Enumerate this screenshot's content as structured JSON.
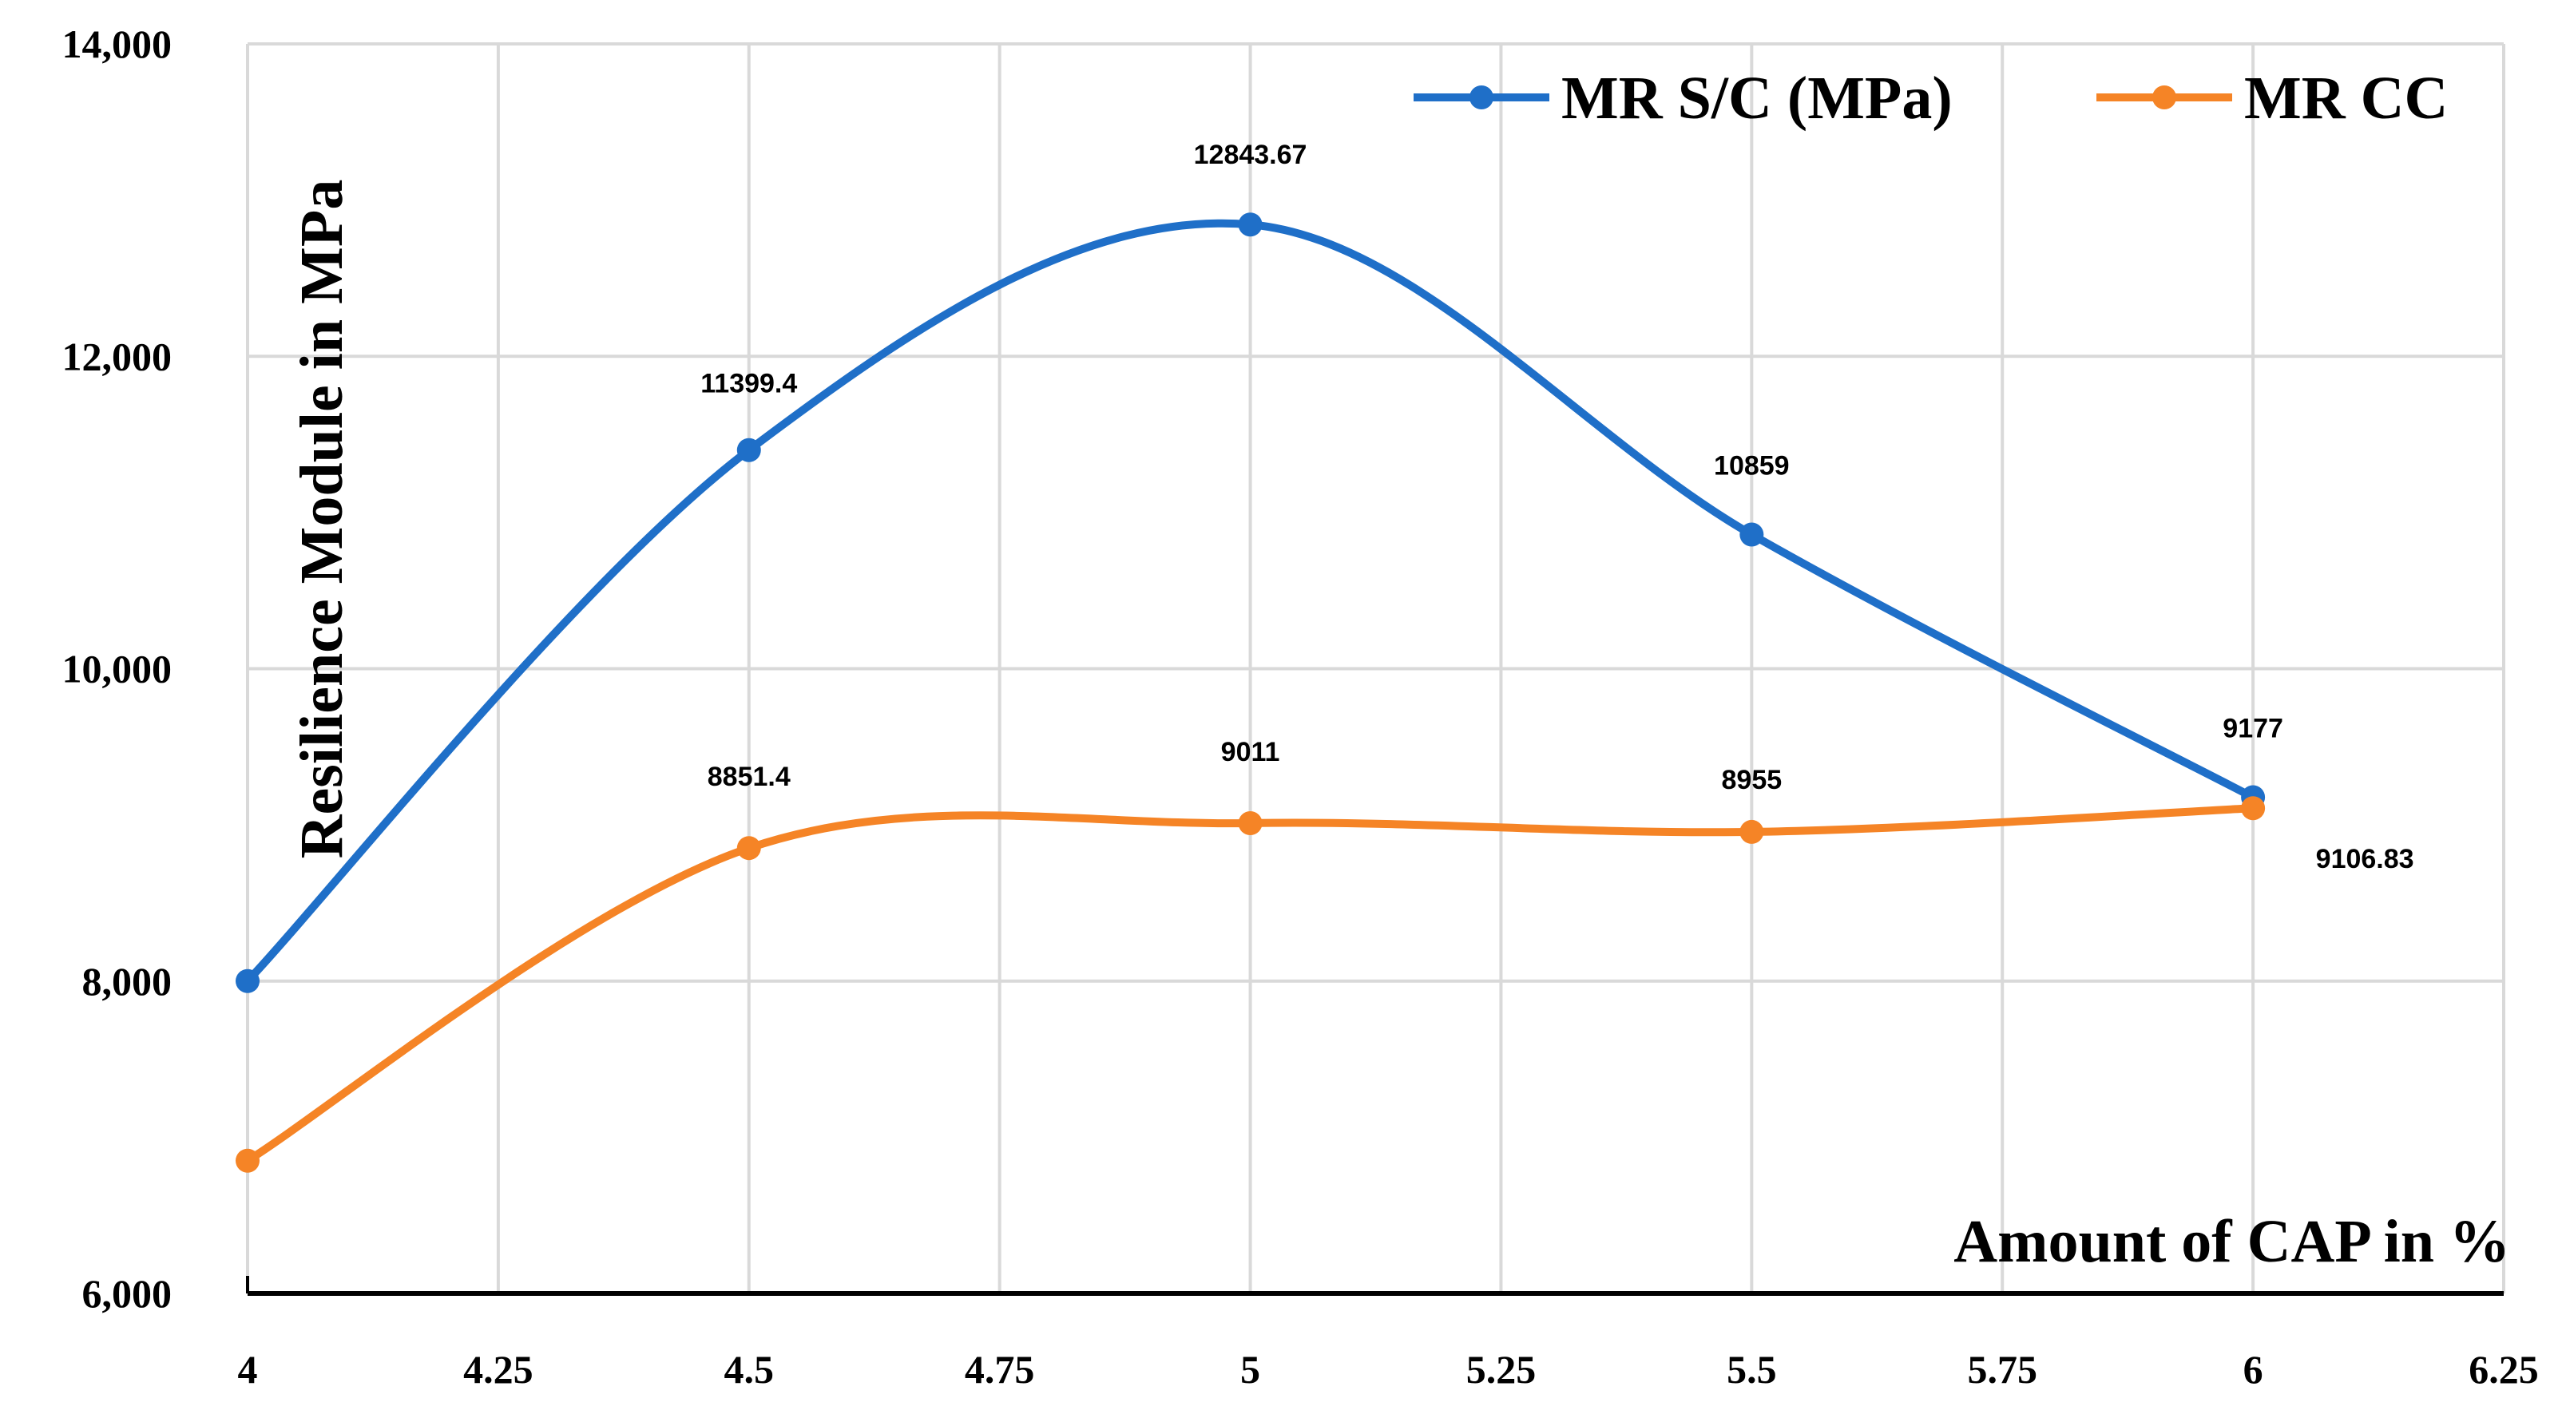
{
  "chart_data": {
    "type": "line",
    "smooth": true,
    "xlabel": "Amount of CAP in %",
    "ylabel": "Resilience Module in MPa",
    "xlim": [
      4,
      6.25
    ],
    "ylim": [
      6000,
      14000
    ],
    "x_ticks": [
      "4",
      "4.25",
      "4.5",
      "4.75",
      "5",
      "5.25",
      "5.5",
      "5.75",
      "6",
      "6.25"
    ],
    "y_ticks": [
      "6,000",
      "8,000",
      "10,000",
      "12,000",
      "14,000"
    ],
    "grid": true,
    "legend_position": "top-right",
    "series": [
      {
        "name": "MR S/C (MPa)",
        "color": "#1F6FC8",
        "x": [
          4,
          4.5,
          5,
          5.5,
          6
        ],
        "values": [
          8000,
          11399.4,
          12843.67,
          10859,
          9177
        ],
        "data_labels": [
          "",
          "11399.4",
          "12843.67",
          "10859",
          "9177"
        ]
      },
      {
        "name": "MR CC",
        "color": "#F58426",
        "x": [
          4,
          4.5,
          5,
          5.5,
          6
        ],
        "values": [
          6850,
          8851.4,
          9011,
          8955,
          9106.83
        ],
        "data_labels": [
          "",
          "8851.4",
          "9011",
          "8955",
          "9106.83"
        ]
      }
    ]
  }
}
